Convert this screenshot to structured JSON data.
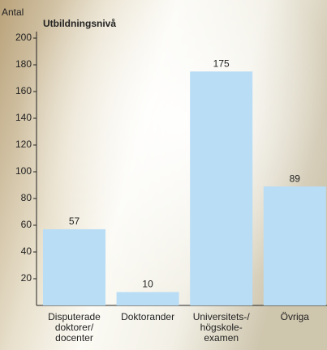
{
  "chart_data": {
    "type": "bar",
    "title": "Utbildningsnivå",
    "y_label": "Antal",
    "categories": [
      [
        "Disputerade",
        "doktorer/",
        "docenter"
      ],
      [
        "Doktorander"
      ],
      [
        "Universitets-/",
        "högskole-",
        "examen"
      ],
      [
        "Övriga"
      ]
    ],
    "values": [
      57,
      10,
      175,
      89
    ],
    "color": "#b9ddf5",
    "ylim": [
      0,
      200
    ],
    "yticks": [
      20,
      40,
      60,
      80,
      100,
      120,
      140,
      160,
      180,
      200
    ]
  }
}
